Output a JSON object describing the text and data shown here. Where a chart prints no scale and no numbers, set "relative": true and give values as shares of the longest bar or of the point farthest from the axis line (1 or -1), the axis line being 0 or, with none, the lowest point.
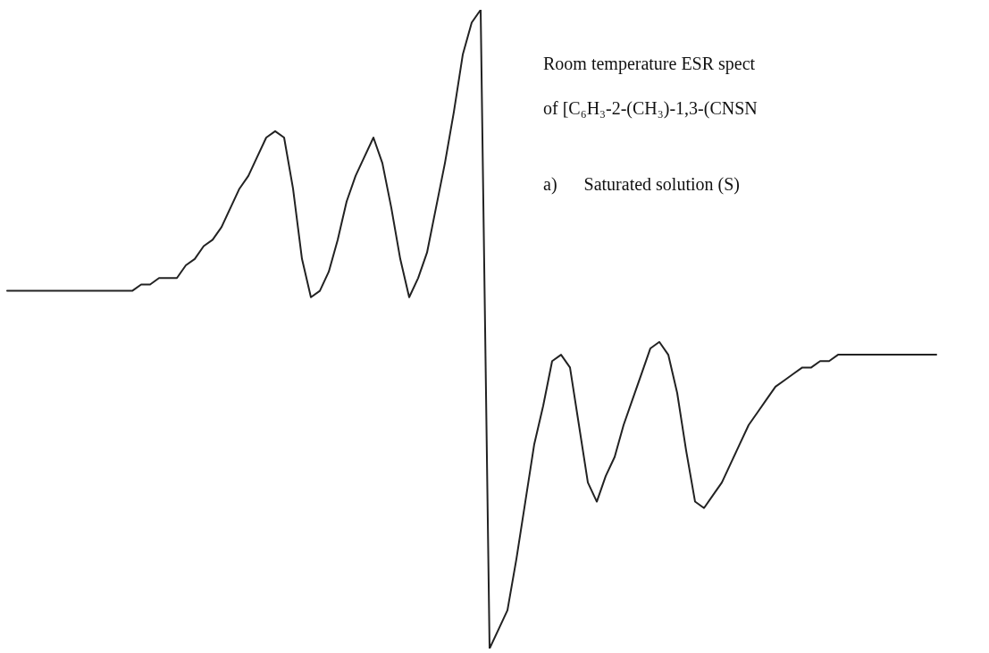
{
  "chart_data": {
    "type": "line",
    "relative": true,
    "title": "Room temperature ESR spect",
    "subtitle": "of [C₆H₃-2-(CH₃)-1,3-(CNSN",
    "annotations": [
      "a)      Saturated solution (S)"
    ],
    "categories": [
      null,
      null,
      null,
      null,
      null,
      null,
      null,
      null,
      null,
      null,
      null,
      null,
      null,
      null,
      null,
      null,
      null,
      null,
      null,
      null,
      null,
      null,
      null,
      null,
      null,
      null,
      null,
      null,
      null,
      null,
      null,
      null,
      null,
      null,
      null,
      null,
      null,
      null,
      null,
      null,
      null,
      null,
      null,
      null,
      null,
      null,
      null,
      null,
      null,
      null,
      null,
      null,
      null,
      null,
      null,
      null,
      null,
      null,
      null,
      null,
      null,
      null,
      null,
      null,
      null,
      null,
      null,
      null,
      null,
      null,
      null,
      null,
      null,
      null,
      null,
      null,
      null,
      null,
      null,
      null,
      null,
      null,
      null,
      null,
      null,
      null,
      null,
      null,
      null,
      null,
      null,
      null,
      null,
      null,
      null,
      null,
      null,
      null,
      null,
      null,
      null,
      null,
      null,
      null,
      null
    ],
    "series": [
      {
        "color": "#222222",
        "values": [
          0.56,
          0.56,
          0.56,
          0.56,
          0.56,
          0.56,
          0.56,
          0.56,
          0.56,
          0.56,
          0.56,
          0.56,
          0.56,
          0.56,
          0.56,
          0.57,
          0.57,
          0.58,
          0.58,
          0.58,
          0.6,
          0.61,
          0.63,
          0.64,
          0.66,
          0.69,
          0.72,
          0.74,
          0.77,
          0.8,
          0.81,
          0.8,
          0.72,
          0.61,
          0.55,
          0.56,
          0.59,
          0.64,
          0.7,
          0.74,
          0.77,
          0.8,
          0.76,
          0.69,
          0.61,
          0.55,
          0.58,
          0.62,
          0.69,
          0.76,
          0.84,
          0.93,
          0.98,
          1,
          0,
          0.03,
          0.06,
          0.14,
          0.23,
          0.32,
          0.38,
          0.45,
          0.46,
          0.44,
          0.35,
          0.26,
          0.23,
          0.27,
          0.3,
          0.35,
          0.39,
          0.43,
          0.47,
          0.48,
          0.46,
          0.4,
          0.31,
          0.23,
          0.22,
          0.24,
          0.26,
          0.29,
          0.32,
          0.35,
          0.37,
          0.39,
          0.41,
          0.42,
          0.43,
          0.44,
          0.44,
          0.45,
          0.45,
          0.46,
          0.46,
          0.46,
          0.46,
          0.46,
          0.46,
          0.46,
          0.46,
          0.46,
          0.46,
          0.46,
          0.46
        ]
      }
    ],
    "marker": "none",
    "line_style": "solid"
  }
}
